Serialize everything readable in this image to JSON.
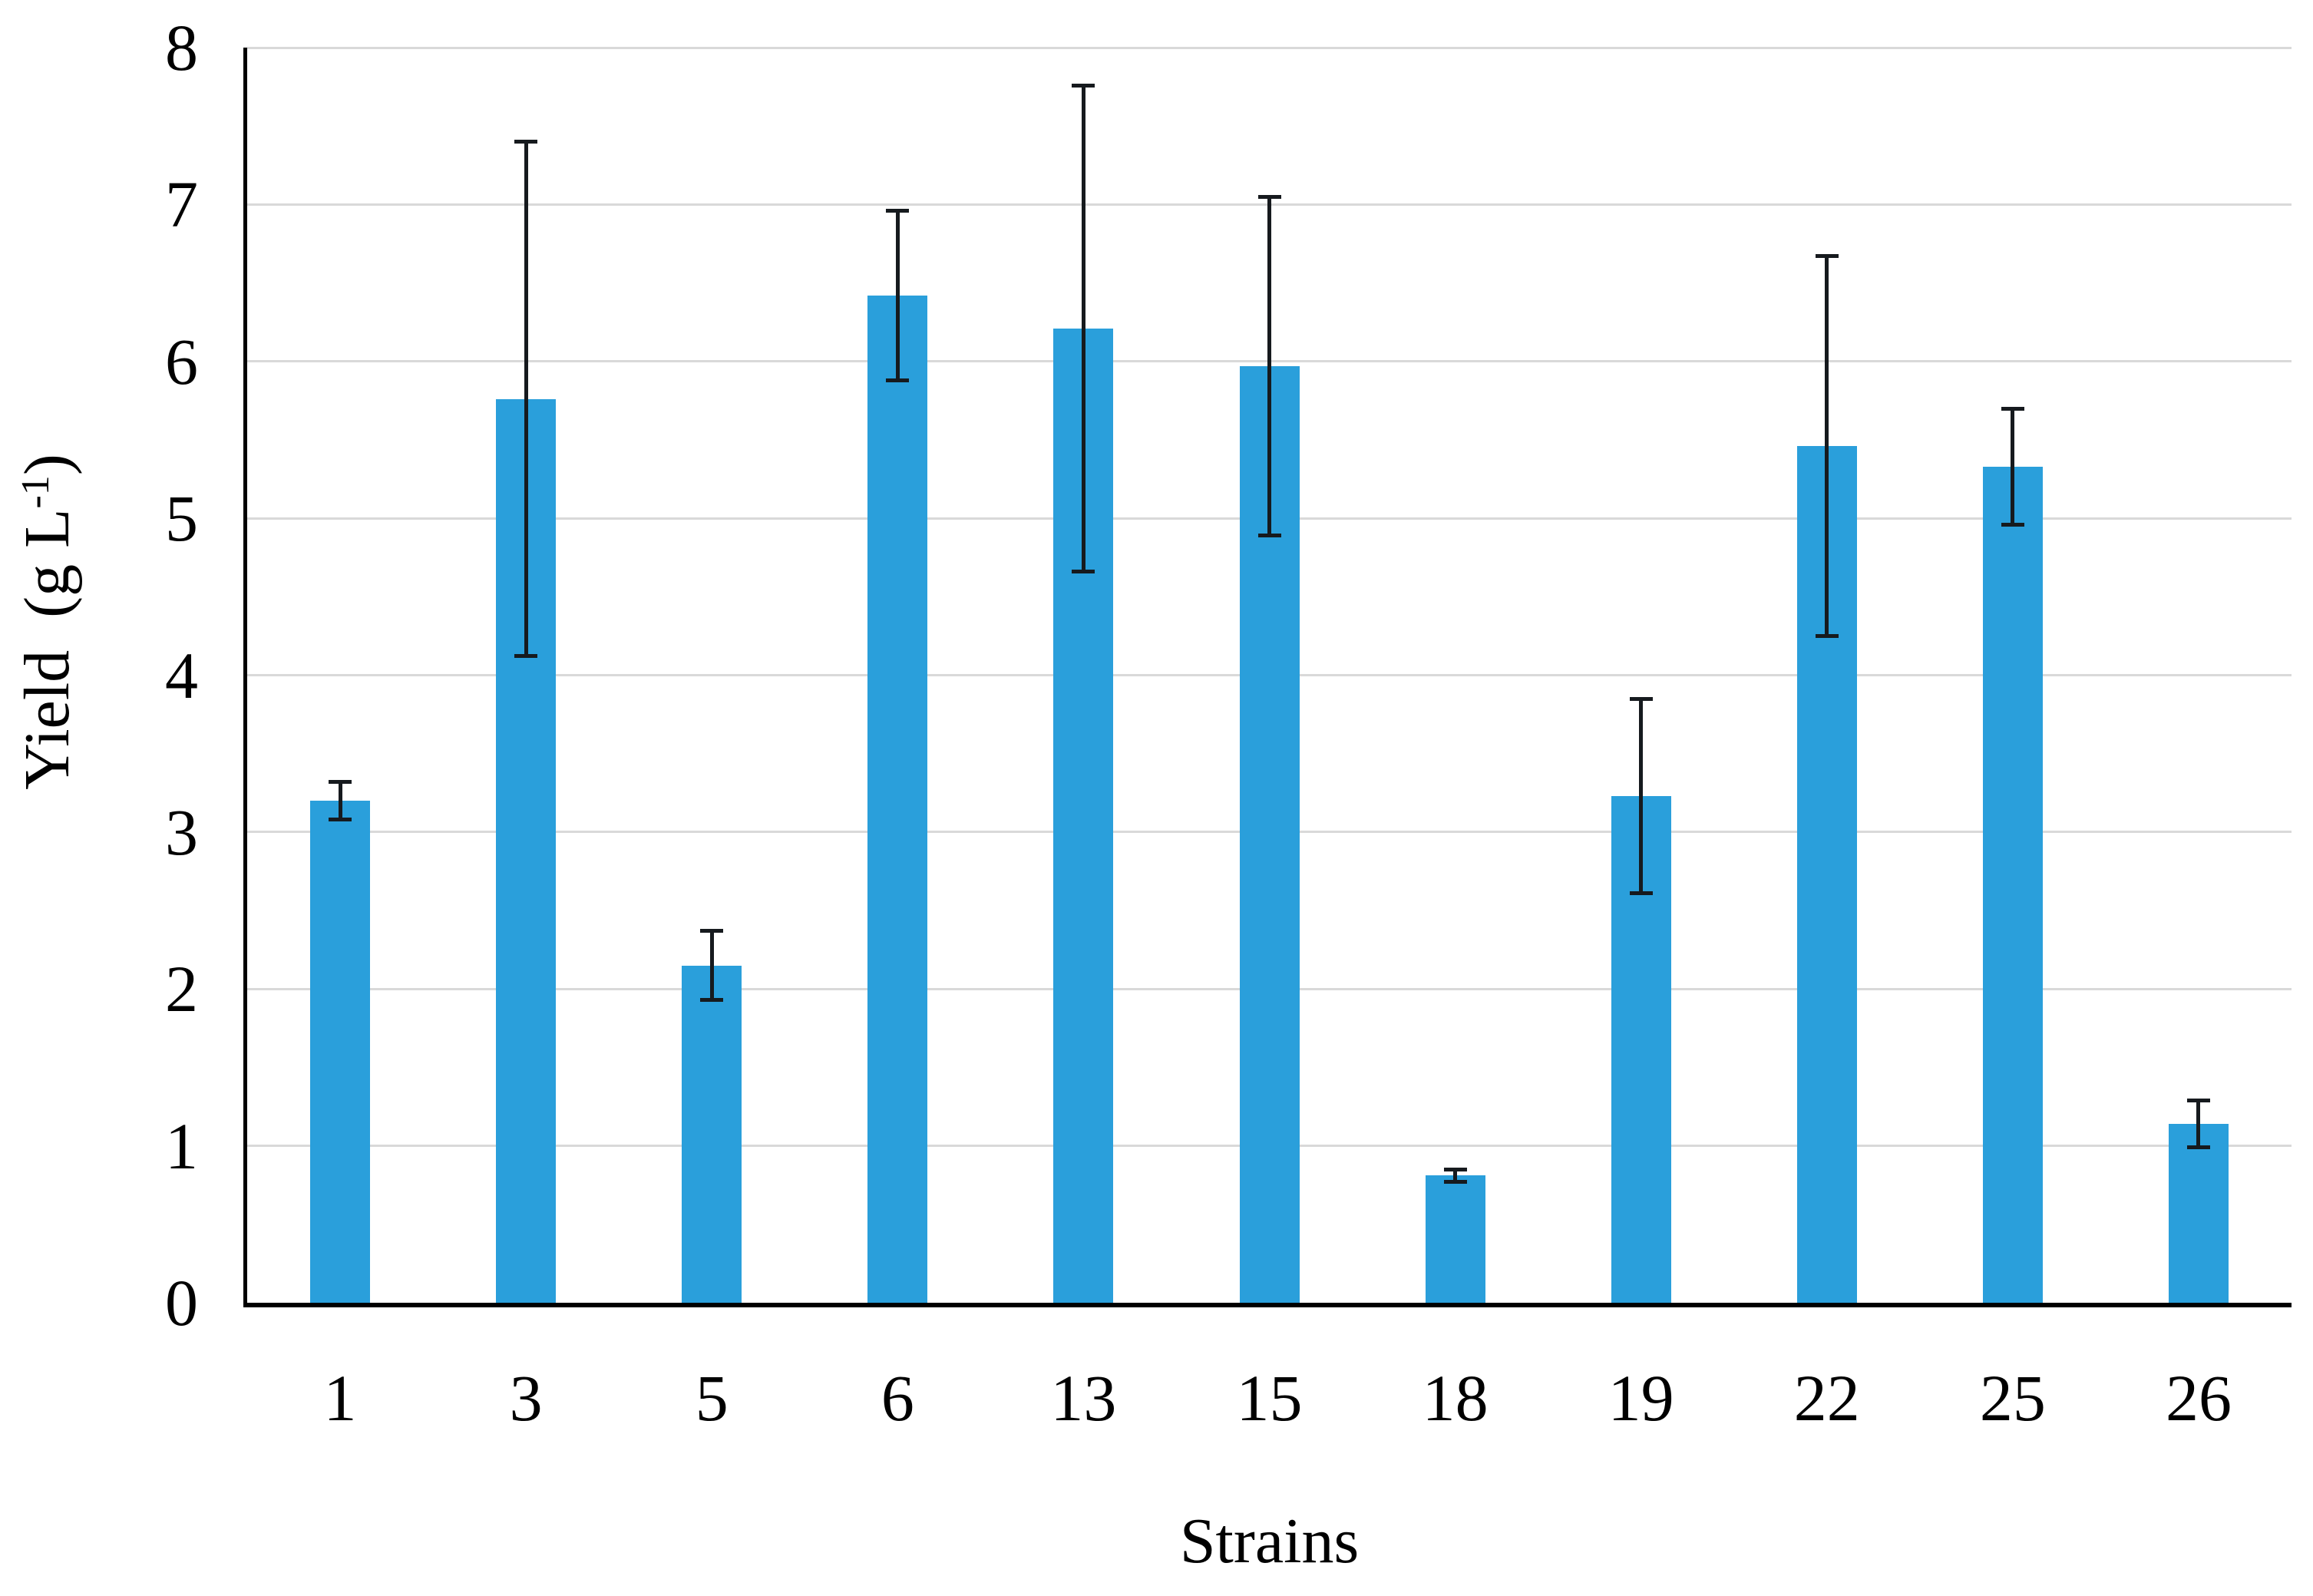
{
  "figure": {
    "x_axis_title": "Strains",
    "y_axis_title": {
      "pre": "Yield  (g L",
      "sup": "-1",
      "post": ")"
    }
  },
  "chart_data": {
    "type": "bar",
    "title": "",
    "xlabel": "Strains",
    "ylabel": "Yield (g L-1)",
    "categories": [
      "1",
      "3",
      "5",
      "6",
      "13",
      "15",
      "18",
      "19",
      "22",
      "25",
      "26"
    ],
    "values": [
      3.2,
      5.76,
      2.15,
      6.42,
      6.21,
      5.97,
      0.81,
      3.23,
      5.46,
      5.33,
      1.14
    ],
    "error_bars": [
      0.12,
      1.64,
      0.22,
      0.54,
      1.55,
      1.08,
      0.04,
      0.62,
      1.21,
      0.37,
      0.15
    ],
    "ylim": [
      0,
      8
    ],
    "yticks": [
      0,
      1,
      2,
      3,
      4,
      5,
      6,
      7,
      8
    ],
    "grid": true,
    "legend": false,
    "bar_color": "#2a9fdb",
    "error_color": "#161a1e",
    "grid_color": "#d9d9d9",
    "axis_color": "#000000"
  }
}
